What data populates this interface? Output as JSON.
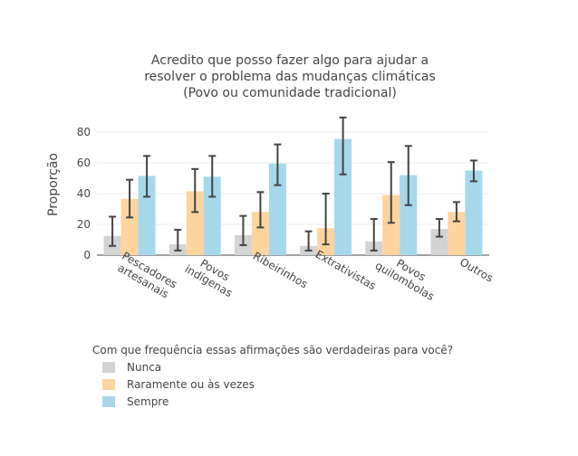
{
  "chart_data": {
    "type": "bar",
    "title_lines": [
      "Acredito que posso fazer algo para ajudar a",
      "resolver o problema das mudanças climáticas",
      "(Povo ou comunidade tradicional)"
    ],
    "ylabel": "Proporção",
    "ylim": [
      0,
      95
    ],
    "yticks": [
      "0",
      "20",
      "40",
      "60",
      "80"
    ],
    "categories": [
      [
        "Pescadores",
        "artesanais"
      ],
      [
        "Povos",
        "indígenas"
      ],
      [
        "Ribeirinhos"
      ],
      [
        "Extrativistas"
      ],
      [
        "Povos",
        "quilombolas"
      ],
      [
        "Outros"
      ]
    ],
    "legend_title": "Com que frequência essas afirmações são verdadeiras para você?",
    "series": [
      {
        "name": "Nunca",
        "color": "#d3d3d3",
        "values": [
          12.5,
          7,
          13,
          6,
          9,
          17
        ],
        "err_low": [
          6,
          3,
          6.5,
          3,
          3,
          12
        ],
        "err_high": [
          25,
          16.5,
          25.5,
          15.5,
          23.5,
          23.5
        ]
      },
      {
        "name": "Raramente ou às vezes",
        "color": "#fdd49e",
        "values": [
          36.5,
          41.5,
          28,
          17.5,
          39,
          28
        ],
        "err_low": [
          24.5,
          28,
          18,
          7,
          21,
          22
        ],
        "err_high": [
          49,
          56,
          41,
          40,
          60.5,
          34.5
        ]
      },
      {
        "name": "Sempre",
        "color": "#a6d8ec",
        "values": [
          51.5,
          51,
          59.5,
          75.5,
          52,
          55
        ],
        "err_low": [
          38,
          38,
          45.5,
          52.5,
          32.5,
          48
        ],
        "err_high": [
          64.5,
          64.5,
          72,
          89.5,
          71,
          61.5
        ]
      }
    ]
  }
}
